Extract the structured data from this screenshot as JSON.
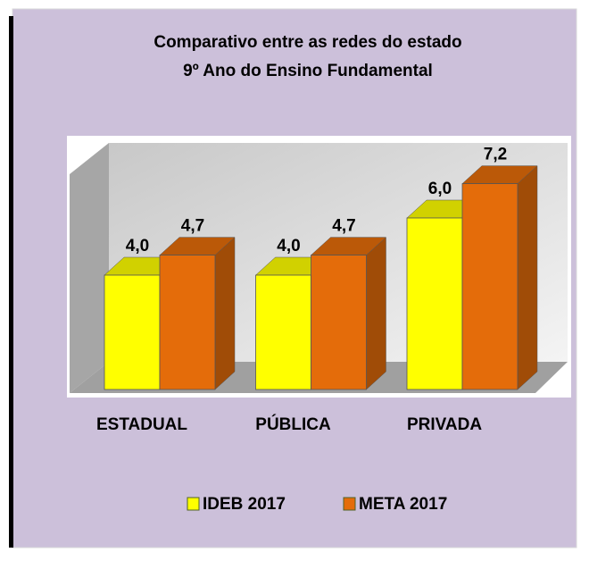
{
  "chart_data": {
    "type": "bar3d",
    "title": "Comparativo entre as redes do estado",
    "subtitle": "9º Ano do Ensino Fundamental",
    "categories": [
      "ESTADUAL",
      "PÚBLICA",
      "PRIVADA"
    ],
    "series": [
      {
        "name": "IDEB 2017",
        "color": "#ffff00",
        "values": [
          4.0,
          4.0,
          6.0
        ],
        "value_labels": [
          "4,0",
          "4,0",
          "6,0"
        ]
      },
      {
        "name": "META 2017",
        "color": "#e46c0a",
        "values": [
          4.7,
          4.7,
          7.2
        ],
        "value_labels": [
          "4,7",
          "4,7",
          "7,2"
        ]
      }
    ],
    "legend": "bottom"
  }
}
